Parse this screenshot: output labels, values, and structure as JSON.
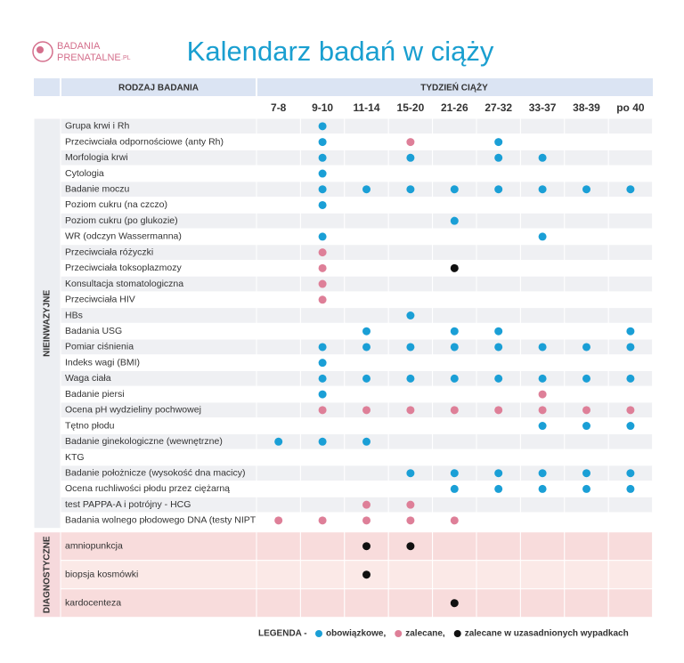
{
  "logo": {
    "line1": "BADANIA",
    "line2": "PRENATALNE",
    "suffix": ".PL"
  },
  "title": "Kalendarz badań w ciąży",
  "header": {
    "exam_column": "RODZAJ BADANIA",
    "weeks_column": "TYDZIEŃ CIĄŻY"
  },
  "weeks": [
    "7-8",
    "9-10",
    "11-14",
    "15-20",
    "21-26",
    "27-32",
    "33-37",
    "38-39",
    "po 40"
  ],
  "sections": [
    {
      "label": "NIEINWAZYJNE",
      "rows": [
        {
          "name": "Grupa krwi i Rh",
          "cells": [
            null,
            "#1a9fd6",
            null,
            null,
            null,
            null,
            null,
            null,
            null
          ]
        },
        {
          "name": "Przeciwciała odpornościowe (anty Rh)",
          "cells": [
            null,
            "#1a9fd6",
            null,
            "#de7f98",
            null,
            "#1a9fd6",
            null,
            null,
            null
          ]
        },
        {
          "name": "Morfologia krwi",
          "cells": [
            null,
            "#1a9fd6",
            null,
            "#1a9fd6",
            null,
            "#1a9fd6",
            "#1a9fd6",
            null,
            null
          ]
        },
        {
          "name": "Cytologia",
          "cells": [
            null,
            "#1a9fd6",
            null,
            null,
            null,
            null,
            null,
            null,
            null
          ]
        },
        {
          "name": "Badanie moczu",
          "cells": [
            null,
            "#1a9fd6",
            "#1a9fd6",
            "#1a9fd6",
            "#1a9fd6",
            "#1a9fd6",
            "#1a9fd6",
            "#1a9fd6",
            "#1a9fd6"
          ]
        },
        {
          "name": "Poziom cukru (na czczo)",
          "cells": [
            null,
            "#1a9fd6",
            null,
            null,
            null,
            null,
            null,
            null,
            null
          ]
        },
        {
          "name": "Poziom cukru (po glukozie)",
          "cells": [
            null,
            null,
            null,
            null,
            "#1a9fd6",
            null,
            null,
            null,
            null
          ]
        },
        {
          "name": "WR (odczyn Wassermanna)",
          "cells": [
            null,
            "#1a9fd6",
            null,
            null,
            null,
            null,
            "#1a9fd6",
            null,
            null
          ]
        },
        {
          "name": "Przeciwciała różyczki",
          "cells": [
            null,
            "#de7f98",
            null,
            null,
            null,
            null,
            null,
            null,
            null
          ]
        },
        {
          "name": "Przeciwciała toksoplazmozy",
          "cells": [
            null,
            "#de7f98",
            null,
            null,
            "#111111",
            null,
            null,
            null,
            null
          ]
        },
        {
          "name": "Konsultacja stomatologiczna",
          "cells": [
            null,
            "#de7f98",
            null,
            null,
            null,
            null,
            null,
            null,
            null
          ]
        },
        {
          "name": "Przeciwciała HIV",
          "cells": [
            null,
            "#de7f98",
            null,
            null,
            null,
            null,
            null,
            null,
            null
          ]
        },
        {
          "name": "HBs",
          "cells": [
            null,
            null,
            null,
            "#1a9fd6",
            null,
            null,
            null,
            null,
            null
          ]
        },
        {
          "name": "Badania USG",
          "cells": [
            null,
            null,
            "#1a9fd6",
            null,
            "#1a9fd6",
            "#1a9fd6",
            null,
            null,
            "#1a9fd6"
          ]
        },
        {
          "name": "Pomiar ciśnienia",
          "cells": [
            null,
            "#1a9fd6",
            "#1a9fd6",
            "#1a9fd6",
            "#1a9fd6",
            "#1a9fd6",
            "#1a9fd6",
            "#1a9fd6",
            "#1a9fd6"
          ]
        },
        {
          "name": "Indeks wagi (BMI)",
          "cells": [
            null,
            "#1a9fd6",
            null,
            null,
            null,
            null,
            null,
            null,
            null
          ]
        },
        {
          "name": "Waga ciała",
          "cells": [
            null,
            "#1a9fd6",
            "#1a9fd6",
            "#1a9fd6",
            "#1a9fd6",
            "#1a9fd6",
            "#1a9fd6",
            "#1a9fd6",
            "#1a9fd6"
          ]
        },
        {
          "name": "Badanie piersi",
          "cells": [
            null,
            "#1a9fd6",
            null,
            null,
            null,
            null,
            "#de7f98",
            null,
            null
          ]
        },
        {
          "name": "Ocena pH wydzieliny pochwowej",
          "cells": [
            null,
            "#de7f98",
            "#de7f98",
            "#de7f98",
            "#de7f98",
            "#de7f98",
            "#de7f98",
            "#de7f98",
            "#de7f98"
          ]
        },
        {
          "name": "Tętno płodu",
          "cells": [
            null,
            null,
            null,
            null,
            null,
            null,
            "#1a9fd6",
            "#1a9fd6",
            "#1a9fd6"
          ]
        },
        {
          "name": "Badanie ginekologiczne (wewnętrzne)",
          "cells": [
            "#1a9fd6",
            "#1a9fd6",
            "#1a9fd6",
            null,
            null,
            null,
            null,
            null,
            null
          ]
        },
        {
          "name": "KTG",
          "cells": [
            null,
            null,
            null,
            null,
            null,
            null,
            null,
            null,
            null
          ]
        },
        {
          "name": "Badanie położnicze (wysokość dna macicy)",
          "cells": [
            null,
            null,
            null,
            "#1a9fd6",
            "#1a9fd6",
            "#1a9fd6",
            "#1a9fd6",
            "#1a9fd6",
            "#1a9fd6"
          ]
        },
        {
          "name": "Ocena ruchliwości płodu przez ciężarną",
          "cells": [
            null,
            null,
            null,
            null,
            "#1a9fd6",
            "#1a9fd6",
            "#1a9fd6",
            "#1a9fd6",
            "#1a9fd6"
          ]
        },
        {
          "name": "test PAPPA-A i potrójny - HCG",
          "cells": [
            null,
            null,
            "#de7f98",
            "#de7f98",
            null,
            null,
            null,
            null,
            null
          ]
        },
        {
          "name": "Badania wolnego płodowego DNA (testy NIPT)",
          "cells": [
            "#de7f98",
            "#de7f98",
            "#de7f98",
            "#de7f98",
            "#de7f98",
            null,
            null,
            null,
            null
          ]
        }
      ]
    },
    {
      "label": "DIAGNOSTYCZNE",
      "rows": [
        {
          "name": "amniopunkcja",
          "cells": [
            null,
            null,
            "#111111",
            "#111111",
            null,
            null,
            null,
            null,
            null
          ]
        },
        {
          "name": "biopsja kosmówki",
          "cells": [
            null,
            null,
            "#111111",
            null,
            null,
            null,
            null,
            null,
            null
          ]
        },
        {
          "name": "kardocenteza",
          "cells": [
            null,
            null,
            null,
            null,
            "#111111",
            null,
            null,
            null,
            null
          ]
        }
      ]
    }
  ],
  "legend": {
    "title": "LEGENDA -",
    "items": [
      {
        "label": "obowiązkowe,",
        "color": "#1a9fd6"
      },
      {
        "label": "zalecane,",
        "color": "#de7f98"
      },
      {
        "label": "zalecane w uzasadnionych wypadkach",
        "color": "#111111"
      }
    ]
  }
}
